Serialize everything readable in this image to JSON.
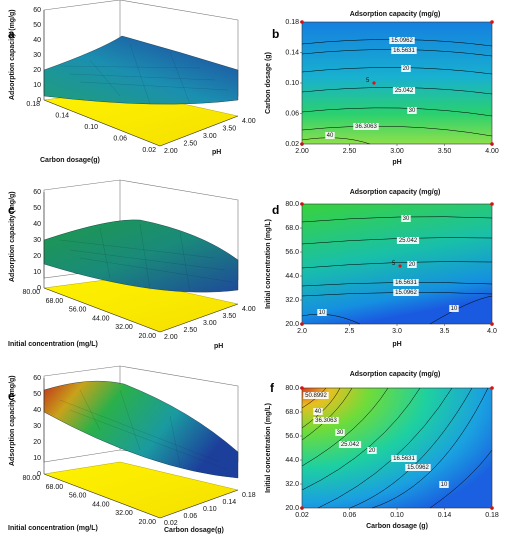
{
  "colors": {
    "yellow": "#ffee00",
    "surface_high": "#1fb24a",
    "surface_low": "#1a4aa8",
    "contour_line": "#000000",
    "design_point": "#e01010"
  },
  "chart_data": [
    {
      "panel": "a",
      "type": "surface3d",
      "zlabel": "Adsorption capacity (mg/g)",
      "xlabel": "pH",
      "ylabel": "Carbon dosage(g)",
      "z_ticks": [
        "0",
        "10",
        "20",
        "30",
        "40",
        "50",
        "60"
      ],
      "x_ticks": [
        "2.00",
        "2.50",
        "3.00",
        "3.50",
        "4.00"
      ],
      "y_ticks": [
        "0.02",
        "0.06",
        "0.10",
        "0.14",
        "0.18"
      ]
    },
    {
      "panel": "b",
      "type": "contour",
      "title": "Adsorption capacity (mg/g)",
      "xlabel": "pH",
      "ylabel": "Carbon dosage (g)",
      "x_ticks": [
        "2.00",
        "2.50",
        "3.00",
        "3.50",
        "4.00"
      ],
      "y_ticks": [
        "0.02",
        "0.06",
        "0.10",
        "0.14",
        "0.18"
      ],
      "contour_labels": [
        "15.0962",
        "16.5631",
        "20",
        "25.042",
        "30",
        "36.3063",
        "40"
      ],
      "design_marker": "5"
    },
    {
      "panel": "c",
      "type": "surface3d",
      "zlabel": "Adsorption capacity (mg/g)",
      "xlabel": "pH",
      "ylabel": "Initial concentration (mg/L)",
      "z_ticks": [
        "0",
        "10",
        "20",
        "30",
        "40",
        "50",
        "60"
      ],
      "x_ticks": [
        "2.00",
        "2.50",
        "3.00",
        "3.50",
        "4.00"
      ],
      "y_ticks": [
        "20.00",
        "32.00",
        "44.00",
        "56.00",
        "68.00",
        "80.00"
      ]
    },
    {
      "panel": "d",
      "type": "contour",
      "title": "Adsorption capacity (mg/g)",
      "xlabel": "pH",
      "ylabel": "Initial concentration (mg/L)",
      "x_ticks": [
        "2.0",
        "2.5",
        "3.0",
        "3.5",
        "4.0"
      ],
      "y_ticks": [
        "20.0",
        "32.0",
        "44.0",
        "56.0",
        "68.0",
        "80.0"
      ],
      "contour_labels": [
        "30",
        "25.042",
        "20",
        "16.5631",
        "15.0962",
        "10",
        "10"
      ],
      "design_marker": "5"
    },
    {
      "panel": "e",
      "type": "surface3d",
      "zlabel": "Adsorption capacity (mg/g)",
      "xlabel": "Carbon dosage(g)",
      "ylabel": "Initial concentration (mg/L)",
      "z_ticks": [
        "0",
        "10",
        "20",
        "30",
        "40",
        "50",
        "60"
      ],
      "x_ticks": [
        "0.02",
        "0.06",
        "0.10",
        "0.14",
        "0.18"
      ],
      "y_ticks": [
        "20.00",
        "32.00",
        "44.00",
        "56.00",
        "68.00",
        "80.00"
      ]
    },
    {
      "panel": "f",
      "type": "contour",
      "title": "Adsorption capacity (mg/g)",
      "xlabel": "Carbon dosage (g)",
      "ylabel": "Initial concentration (mg/L)",
      "x_ticks": [
        "0.02",
        "0.06",
        "0.10",
        "0.14",
        "0.18"
      ],
      "y_ticks": [
        "20.0",
        "32.0",
        "44.0",
        "56.0",
        "68.0",
        "80.0"
      ],
      "contour_labels": [
        "50.8992",
        "40",
        "36.3063",
        "30",
        "25.042",
        "20",
        "16.5631",
        "15.0962",
        "10"
      ]
    }
  ]
}
